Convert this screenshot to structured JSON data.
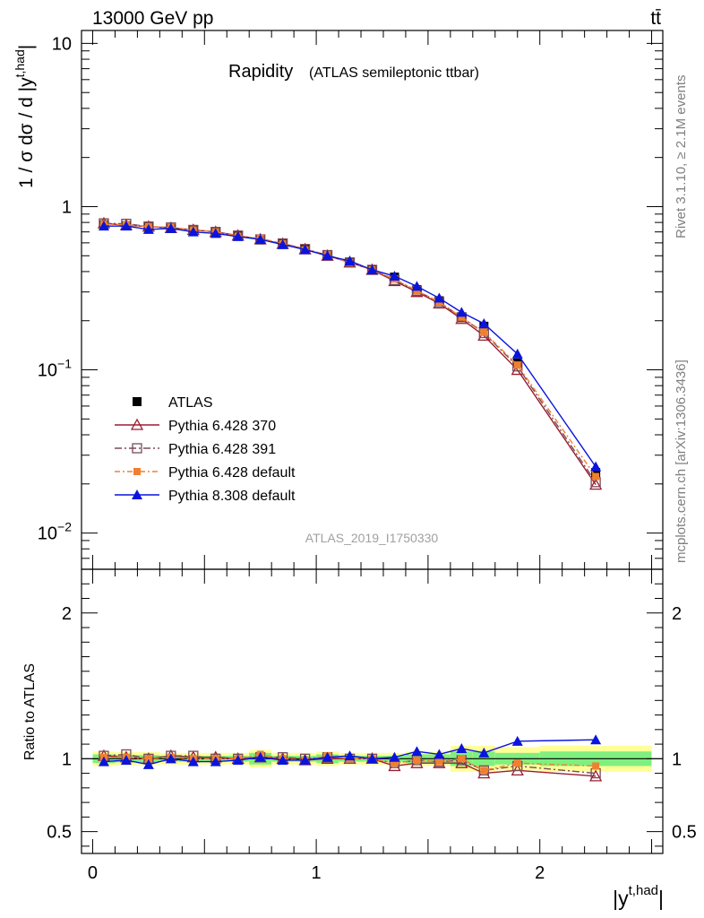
{
  "header": {
    "energy_label": "13000 GeV pp",
    "process_label": "tt̄",
    "side_top": "Rivet 3.1.10, ≥ 2.1M events",
    "side_bottom": "mcplots.cern.ch [arXiv:1306.3436]"
  },
  "title_main": "Rapidity",
  "title_sub": "(ATLAS semileptonic ttbar)",
  "watermark": "ATLAS_2019_I1750330",
  "legend": {
    "placement": "lower-left",
    "entries": [
      "ATLAS",
      "Pythia 6.428 370",
      "Pythia 6.428 391",
      "Pythia 6.428 default",
      "Pythia 8.308 default"
    ]
  },
  "colors": {
    "data": "#000000",
    "p370": "#9b1c2e",
    "p391": "#7a4a5a",
    "pdef": "#f08030",
    "p8": "#0a14dc",
    "band_inner": "#7ff07f",
    "band_outer": "#ffff99"
  },
  "chart_data": [
    {
      "type": "line",
      "scale": "log",
      "ylabel": "1 / σ dσ / d |y^{t,had}|",
      "ylim": [
        0.006,
        12
      ],
      "xlim": [
        -0.05,
        2.55
      ],
      "yticks": [
        {
          "value": 10,
          "label": "10"
        },
        {
          "value": 1,
          "label": "1"
        },
        {
          "value": 0.1,
          "label": "10^-1"
        },
        {
          "value": 0.01,
          "label": "10^-2"
        }
      ],
      "x": [
        0.05,
        0.15,
        0.25,
        0.35,
        0.45,
        0.55,
        0.65,
        0.75,
        0.85,
        0.95,
        1.05,
        1.15,
        1.25,
        1.35,
        1.45,
        1.55,
        1.65,
        1.75,
        1.9,
        2.25
      ],
      "series": [
        {
          "name": "ATLAS",
          "style": "data",
          "values": [
            0.775,
            0.765,
            0.752,
            0.735,
            0.715,
            0.695,
            0.66,
            0.625,
            0.59,
            0.55,
            0.5,
            0.455,
            0.41,
            0.37,
            0.31,
            0.265,
            0.21,
            0.185,
            0.11,
            0.0235
          ]
        },
        {
          "name": "Pythia 6.428 370",
          "style": "p370",
          "values": [
            0.79,
            0.77,
            0.755,
            0.74,
            0.72,
            0.7,
            0.665,
            0.63,
            0.592,
            0.548,
            0.5,
            0.455,
            0.41,
            0.35,
            0.3,
            0.255,
            0.205,
            0.162,
            0.1,
            0.0198
          ]
        },
        {
          "name": "Pythia 6.428 391",
          "style": "p391",
          "values": [
            0.79,
            0.785,
            0.755,
            0.745,
            0.72,
            0.7,
            0.665,
            0.63,
            0.595,
            0.55,
            0.505,
            0.455,
            0.41,
            0.355,
            0.305,
            0.26,
            0.21,
            0.168,
            0.105,
            0.0205
          ]
        },
        {
          "name": "Pythia 6.428 default",
          "style": "pdef",
          "values": [
            0.78,
            0.775,
            0.755,
            0.745,
            0.72,
            0.7,
            0.66,
            0.64,
            0.592,
            0.545,
            0.505,
            0.455,
            0.41,
            0.36,
            0.305,
            0.26,
            0.21,
            0.17,
            0.107,
            0.0222
          ]
        },
        {
          "name": "Pythia 8.308 default",
          "style": "p8",
          "values": [
            0.76,
            0.76,
            0.725,
            0.735,
            0.7,
            0.685,
            0.655,
            0.63,
            0.585,
            0.545,
            0.5,
            0.465,
            0.41,
            0.375,
            0.325,
            0.275,
            0.225,
            0.192,
            0.125,
            0.0255
          ]
        }
      ]
    },
    {
      "type": "line",
      "ylabel": "Ratio to ATLAS",
      "xlabel": "|y^{t,had}|",
      "ylim": [
        0.35,
        2.3
      ],
      "xlim": [
        -0.05,
        2.55
      ],
      "yticks": [
        {
          "value": 0.5,
          "label": "0.5"
        },
        {
          "value": 1,
          "label": "1"
        },
        {
          "value": 2,
          "label": "2"
        }
      ],
      "xticks": [
        {
          "value": 0,
          "label": "0"
        },
        {
          "value": 1,
          "label": "1"
        },
        {
          "value": 2,
          "label": "2"
        }
      ],
      "reference_line": 1,
      "bins": [
        0,
        0.1,
        0.2,
        0.3,
        0.4,
        0.5,
        0.6,
        0.7,
        0.8,
        0.9,
        1.0,
        1.1,
        1.2,
        1.3,
        1.4,
        1.5,
        1.6,
        1.7,
        1.8,
        2.0,
        2.5
      ],
      "band_inner": [
        0.03,
        0.025,
        0.025,
        0.02,
        0.02,
        0.02,
        0.02,
        0.04,
        0.02,
        0.02,
        0.03,
        0.02,
        0.02,
        0.02,
        0.03,
        0.03,
        0.05,
        0.05,
        0.04,
        0.05
      ],
      "band_outer": [
        0.05,
        0.045,
        0.045,
        0.04,
        0.04,
        0.04,
        0.04,
        0.06,
        0.04,
        0.04,
        0.05,
        0.04,
        0.04,
        0.04,
        0.05,
        0.05,
        0.09,
        0.09,
        0.08,
        0.09
      ],
      "x": [
        0.05,
        0.15,
        0.25,
        0.35,
        0.45,
        0.55,
        0.65,
        0.75,
        0.85,
        0.95,
        1.05,
        1.15,
        1.25,
        1.35,
        1.45,
        1.55,
        1.65,
        1.75,
        1.9,
        2.25
      ],
      "series": [
        {
          "name": "Pythia 6.428 370",
          "style": "p370",
          "values": [
            1.02,
            1.01,
            1.0,
            1.02,
            1.01,
            1.01,
            1.0,
            1.01,
            1.0,
            0.99,
            1.0,
            1.0,
            1.0,
            0.95,
            0.97,
            0.97,
            0.97,
            0.9,
            0.92,
            0.88
          ]
        },
        {
          "name": "Pythia 6.428 391",
          "style": "p391",
          "values": [
            1.02,
            1.03,
            1.0,
            1.02,
            1.02,
            1.0,
            1.0,
            1.01,
            1.01,
            1.0,
            1.01,
            1.0,
            1.0,
            0.97,
            0.99,
            0.98,
            0.99,
            0.92,
            0.95,
            0.9
          ]
        },
        {
          "name": "Pythia 6.428 default",
          "style": "pdef",
          "values": [
            1.01,
            1.01,
            1.0,
            1.01,
            1.0,
            1.0,
            1.0,
            1.03,
            1.0,
            0.99,
            1.02,
            1.0,
            1.0,
            0.97,
            0.99,
            0.98,
            1.0,
            0.92,
            0.97,
            0.95
          ]
        },
        {
          "name": "Pythia 8.308 default",
          "style": "p8",
          "values": [
            0.98,
            0.99,
            0.96,
            1.0,
            0.98,
            0.98,
            0.99,
            1.01,
            0.99,
            0.99,
            1.01,
            1.02,
            1.0,
            1.01,
            1.05,
            1.03,
            1.07,
            1.04,
            1.12,
            1.13
          ]
        }
      ]
    }
  ]
}
